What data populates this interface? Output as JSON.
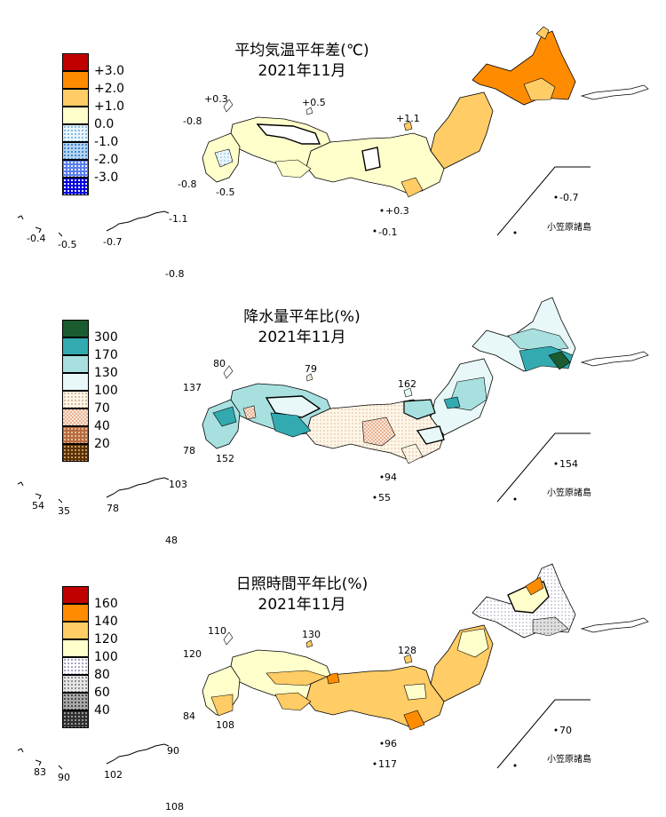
{
  "panels": [
    {
      "id": "temperature",
      "title_line1": "平均気温平年差(℃)",
      "title_line2": "2021年11月",
      "legend": [
        {
          "label": "+3.0",
          "color": "#c00000",
          "pattern": "solid"
        },
        {
          "label": "+2.0",
          "color": "#ff8c00",
          "pattern": "solid"
        },
        {
          "label": "+1.0",
          "color": "#ffcc66",
          "pattern": "solid"
        },
        {
          "label": "0.0",
          "color": "#ffffcc",
          "pattern": "solid"
        },
        {
          "label": "-1.0",
          "color": "#d0ecf8",
          "pattern": "dots"
        },
        {
          "label": "-2.0",
          "color": "#9cc2ea",
          "pattern": "dots"
        },
        {
          "label": "-3.0",
          "color": "#0000e0",
          "pattern": "dots"
        }
      ],
      "legend_extra_top_box_color": "#c00000",
      "values": [
        "+0.3",
        "+0.5",
        "+1.1",
        "-0.8",
        "-0.8",
        "-0.5",
        "-1.1",
        "-0.4",
        "-0.5",
        "-0.7",
        "-0.8",
        "+0.3",
        "-0.1",
        "-0.7"
      ],
      "ogasawara_label": "小笠原諸島"
    },
    {
      "id": "precipitation",
      "title_line1": "降水量平年比(%)",
      "title_line2": "2021年11月",
      "legend": [
        {
          "label": "300",
          "color": "#1a6b3a",
          "pattern": "solid"
        },
        {
          "label": "170",
          "color": "#33aab0",
          "pattern": "solid"
        },
        {
          "label": "130",
          "color": "#a8e0e0",
          "pattern": "solid"
        },
        {
          "label": "100",
          "color": "#e8f8f8",
          "pattern": "solid"
        },
        {
          "label": "70",
          "color": "#fff2dc",
          "pattern": "dots"
        },
        {
          "label": "40",
          "color": "#e8b898",
          "pattern": "checks"
        },
        {
          "label": "20",
          "color": "#b86b40",
          "pattern": "solid"
        }
      ],
      "legend_extra_bottom_box_color": "#5a3200",
      "values": [
        "80",
        "79",
        "162",
        "137",
        "78",
        "152",
        "103",
        "54",
        "35",
        "78",
        "48",
        "94",
        "55",
        "154"
      ],
      "ogasawara_label": "小笠原諸島"
    },
    {
      "id": "sunshine",
      "title_line1": "日照時間平年比(%)",
      "title_line2": "2021年11月",
      "legend": [
        {
          "label": "160",
          "color": "#c00000",
          "pattern": "solid"
        },
        {
          "label": "140",
          "color": "#ff8c00",
          "pattern": "solid"
        },
        {
          "label": "120",
          "color": "#ffcc66",
          "pattern": "solid"
        },
        {
          "label": "100",
          "color": "#ffffcc",
          "pattern": "solid"
        },
        {
          "label": "80",
          "color": "#ffffff",
          "pattern": "dots"
        },
        {
          "label": "60",
          "color": "#d0d0d0",
          "pattern": "dots"
        },
        {
          "label": "40",
          "color": "#909090",
          "pattern": "dots"
        }
      ],
      "legend_extra_bottom_box_color": "#303030",
      "values": [
        "110",
        "130",
        "128",
        "120",
        "84",
        "108",
        "90",
        "83",
        "90",
        "102",
        "108",
        "96",
        "117",
        "70"
      ],
      "ogasawara_label": "小笠原諸島"
    }
  ],
  "colors": {
    "outline": "#000000"
  }
}
